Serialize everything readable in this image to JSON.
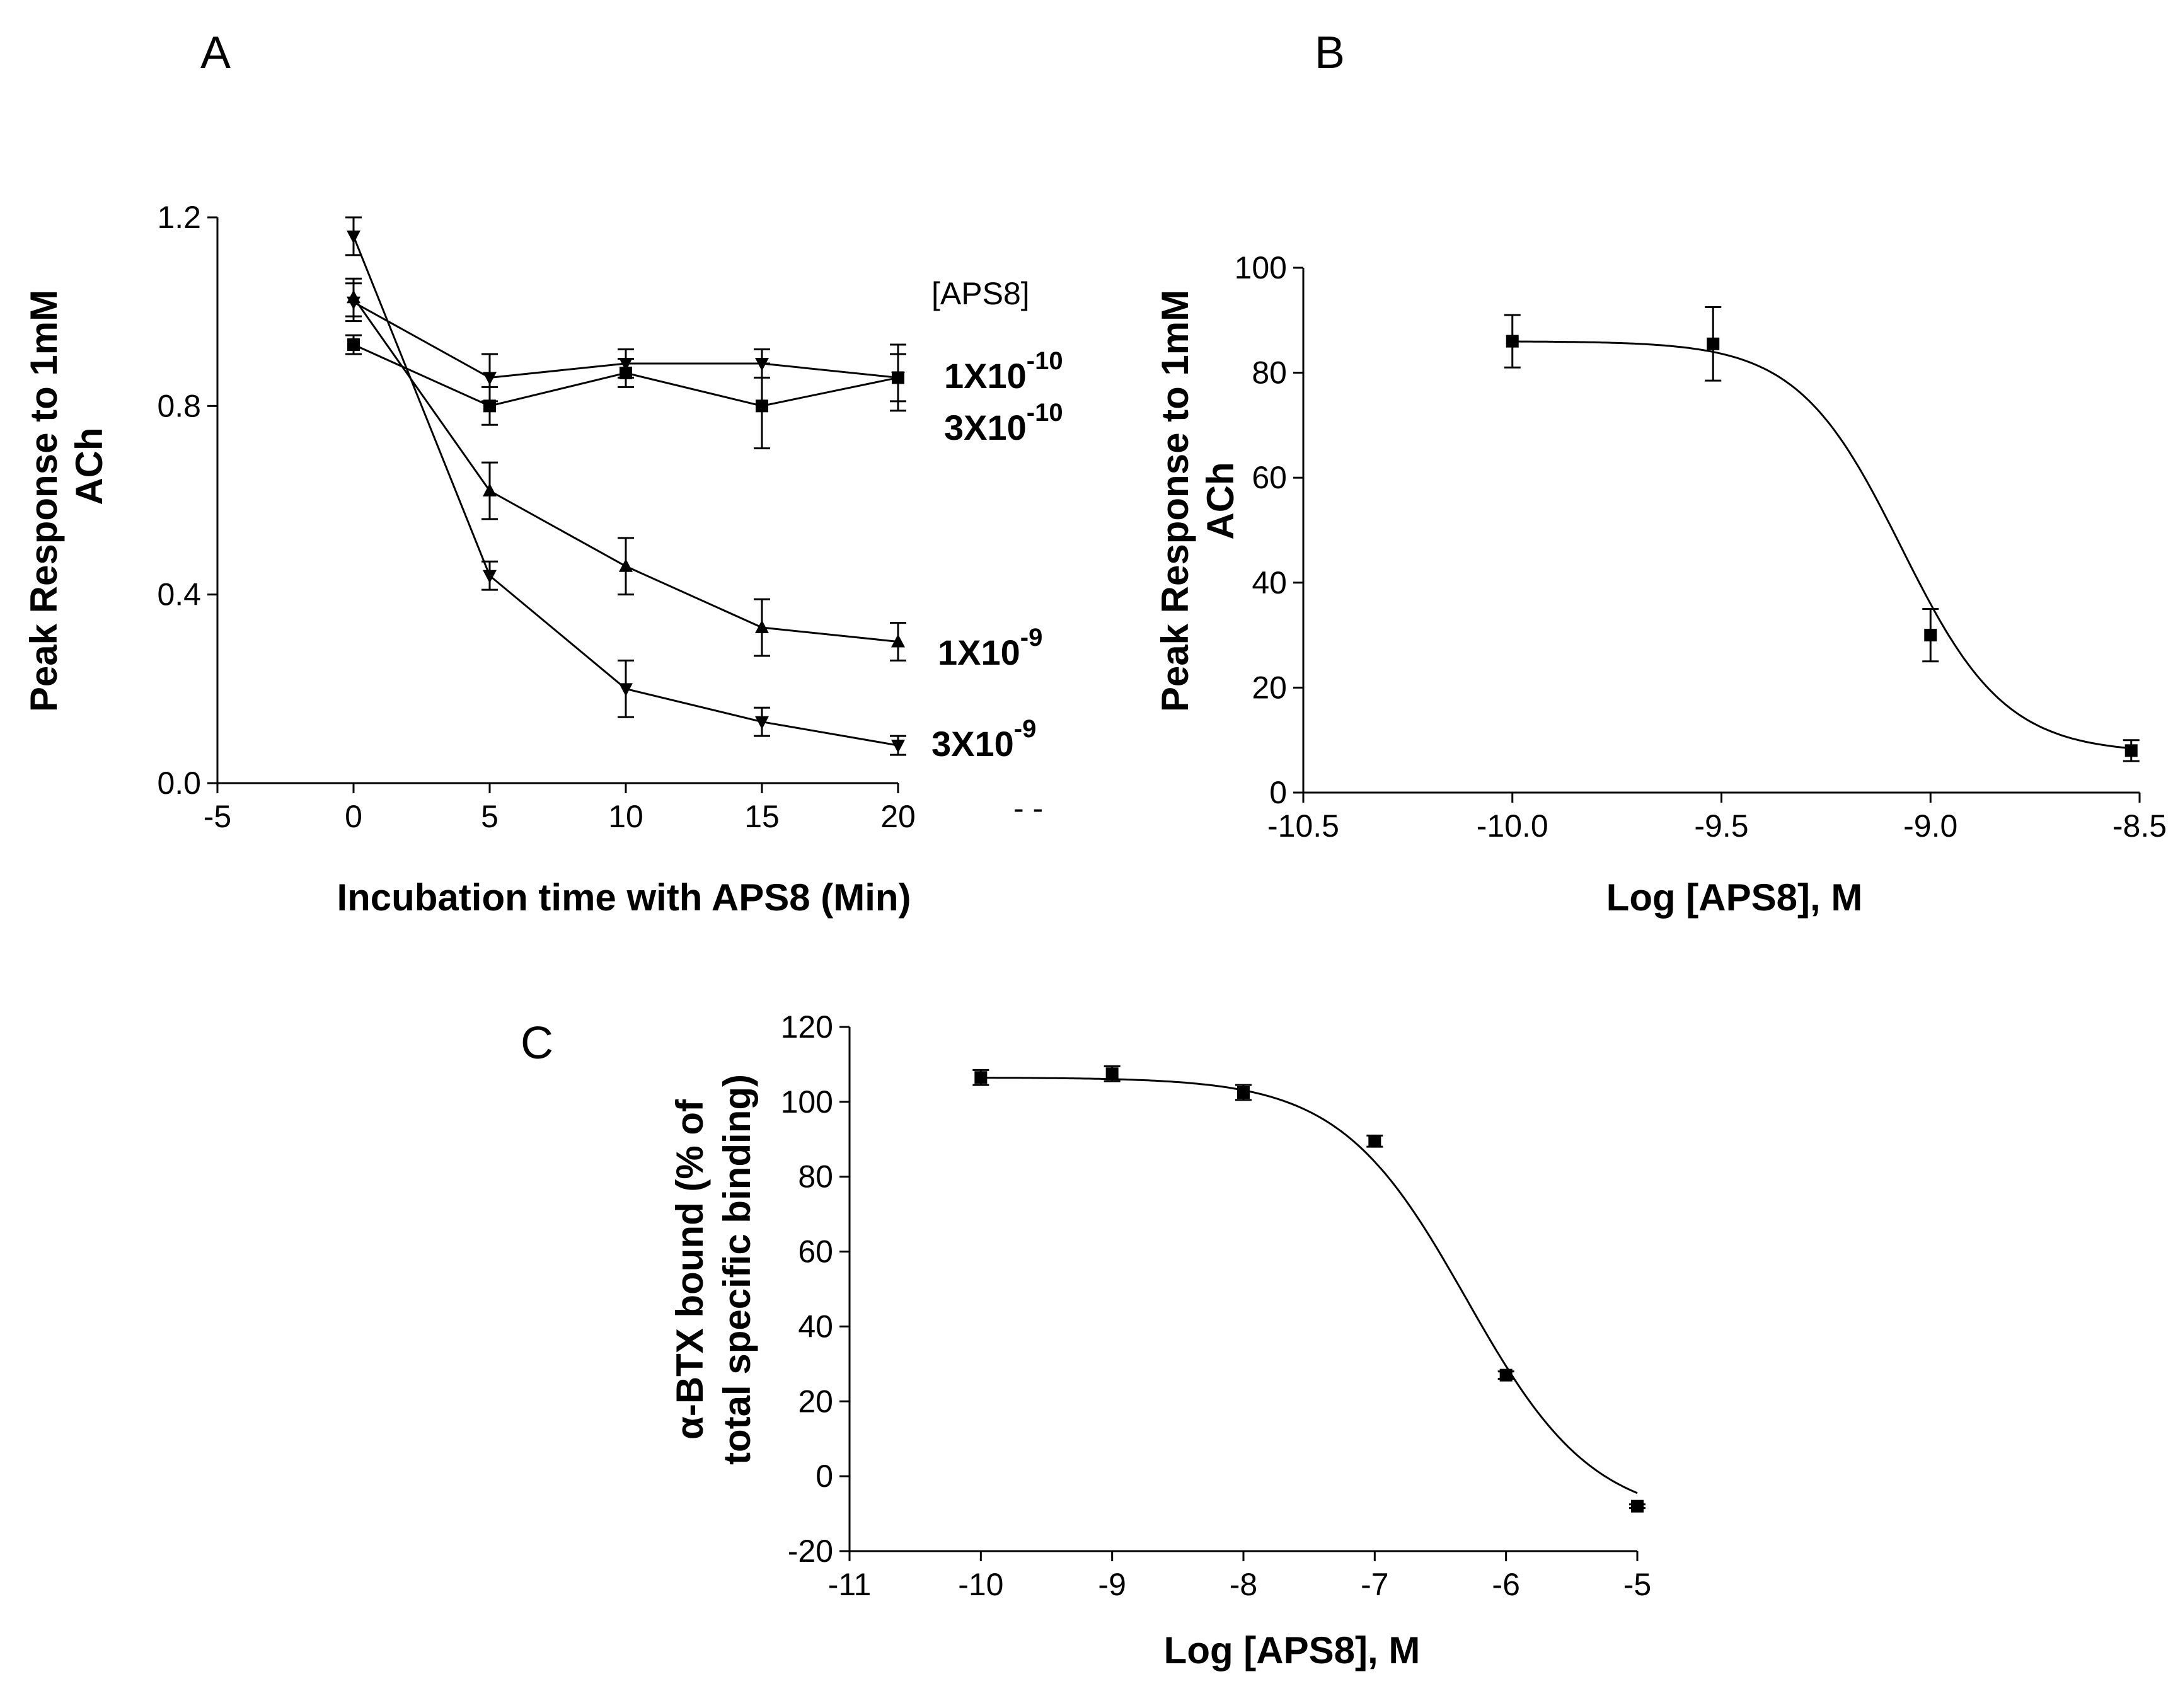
{
  "chart_data": [
    {
      "panel": "A",
      "type": "line",
      "xlabel": "Incubation time with APS8 (Min)",
      "ylabel": "Peak Response to 1mM ACh",
      "xlim": [
        -5,
        20
      ],
      "ylim": [
        0.0,
        1.2
      ],
      "xticks": [
        "-5",
        "0",
        "5",
        "10",
        "15",
        "20"
      ],
      "yticks": [
        "0.0",
        "0.4",
        "0.8",
        "1.2"
      ],
      "legend_title": "[APS8]",
      "x": [
        0,
        5,
        10,
        15,
        20
      ],
      "series": [
        {
          "name": "1X10-10",
          "base": "1X10",
          "exp": "-10",
          "marker": "triangle-down",
          "values": [
            1.02,
            0.86,
            0.89,
            0.89,
            0.86
          ],
          "errors": [
            0.04,
            0.05,
            0.03,
            0.03,
            0.07
          ]
        },
        {
          "name": "3X10-10",
          "base": "3X10",
          "exp": "-10",
          "marker": "square",
          "values": [
            0.93,
            0.8,
            0.87,
            0.8,
            0.86
          ],
          "errors": [
            0.02,
            0.04,
            0.03,
            0.09,
            0.05
          ]
        },
        {
          "name": "1X10-9",
          "base": "1X10",
          "exp": "-9",
          "marker": "triangle-up",
          "values": [
            1.03,
            0.62,
            0.46,
            0.33,
            0.3
          ],
          "errors": [
            0.04,
            0.06,
            0.06,
            0.06,
            0.04
          ]
        },
        {
          "name": "3X10-9",
          "base": "3X10",
          "exp": "-9",
          "marker": "triangle-down",
          "values": [
            1.16,
            0.44,
            0.2,
            0.13,
            0.08
          ],
          "errors": [
            0.04,
            0.03,
            0.06,
            0.03,
            0.02
          ]
        }
      ]
    },
    {
      "panel": "B",
      "type": "scatter",
      "xlabel": "Log [APS8], M",
      "ylabel": "Peak Response to 1mM ACh",
      "xlim": [
        -10.5,
        -8.5
      ],
      "ylim": [
        0,
        100
      ],
      "xticks": [
        "-10.5",
        "-10.0",
        "-9.5",
        "-9.0",
        "-8.5"
      ],
      "yticks": [
        "0",
        "20",
        "40",
        "60",
        "80",
        "100"
      ],
      "x": [
        -10.0,
        -9.52,
        -9.0,
        -8.52
      ],
      "values": [
        86,
        85.5,
        30,
        8
      ],
      "errors": [
        5,
        7,
        5,
        2
      ],
      "fit": {
        "top": 86,
        "bottom": 7.5,
        "logIC50": -9.07,
        "hill": -3.5
      }
    },
    {
      "panel": "C",
      "type": "scatter",
      "xlabel": "Log [APS8], M",
      "ylabel": "α-BTX bound (% of total specific binding)",
      "xlim": [
        -11,
        -5
      ],
      "ylim": [
        -20,
        120
      ],
      "xticks": [
        "-11",
        "-10",
        "-9",
        "-8",
        "-7",
        "-6",
        "-5"
      ],
      "yticks": [
        "-20",
        "0",
        "20",
        "40",
        "60",
        "80",
        "100",
        "120"
      ],
      "x": [
        -10,
        -9,
        -8,
        -7,
        -6,
        -5
      ],
      "values": [
        106.5,
        107.5,
        102.5,
        89.5,
        27,
        -8
      ],
      "errors": [
        2,
        2,
        2,
        1.5,
        1,
        0.5
      ],
      "fit": {
        "top": 106.5,
        "bottom": -12,
        "logIC50": -6.3,
        "hill": -0.9
      }
    }
  ],
  "figure": {
    "labels": {
      "a": "A",
      "b": "B",
      "c": "C",
      "ylabel_ab_line1": "Peak Response to 1mM",
      "ylabel_ab_line2": "ACh",
      "ylabel_c_line1": "α-BTX bound (% of",
      "ylabel_c_line2": "total specific binding)",
      "xlabel_a": "Incubation time with APS8 (Min)",
      "xlabel_b": "Log [APS8], M",
      "xlabel_c": "Log [APS8], M",
      "legend_title": "[APS8]",
      "stray_mark": "- -"
    }
  }
}
